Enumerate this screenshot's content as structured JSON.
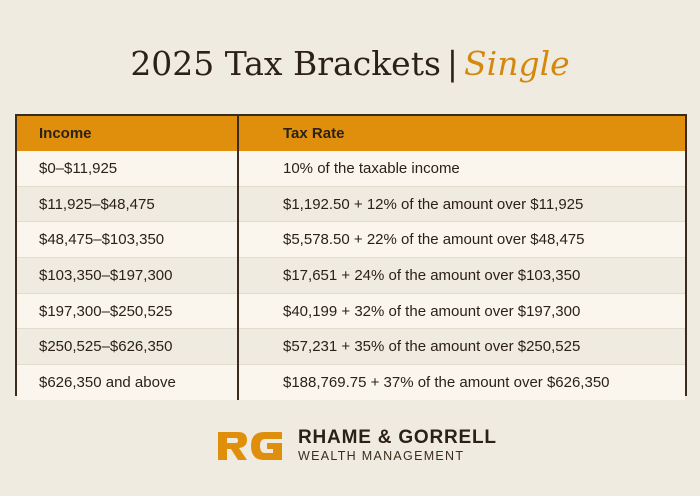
{
  "title": {
    "main": "2025 Tax Brackets",
    "separator": "|",
    "accent": "Single"
  },
  "table": {
    "headers": [
      "Income",
      "Tax Rate"
    ],
    "rows": [
      {
        "income": "$0–$11,925",
        "rate": "10% of the taxable income"
      },
      {
        "income": "$11,925–$48,475",
        "rate": "$1,192.50 + 12% of the amount over $11,925"
      },
      {
        "income": "$48,475–$103,350",
        "rate": "$5,578.50 + 22% of the amount over $48,475"
      },
      {
        "income": "$103,350–$197,300",
        "rate": "$17,651 + 24% of the amount over $103,350"
      },
      {
        "income": "$197,300–$250,525",
        "rate": "$40,199 + 32% of the amount over $197,300"
      },
      {
        "income": "$250,525–$626,350",
        "rate": "$57,231 + 35% of the amount over $250,525"
      },
      {
        "income": "$626,350 and above",
        "rate": "$188,769.75 + 37% of the amount over $626,350"
      }
    ]
  },
  "brand": {
    "monogram": "RG",
    "name": "RHAME & GORRELL",
    "subtitle": "WEALTH MANAGEMENT"
  },
  "colors": {
    "accent": "#df8f0c",
    "background": "#f0ebe0",
    "text": "#2b2118"
  }
}
